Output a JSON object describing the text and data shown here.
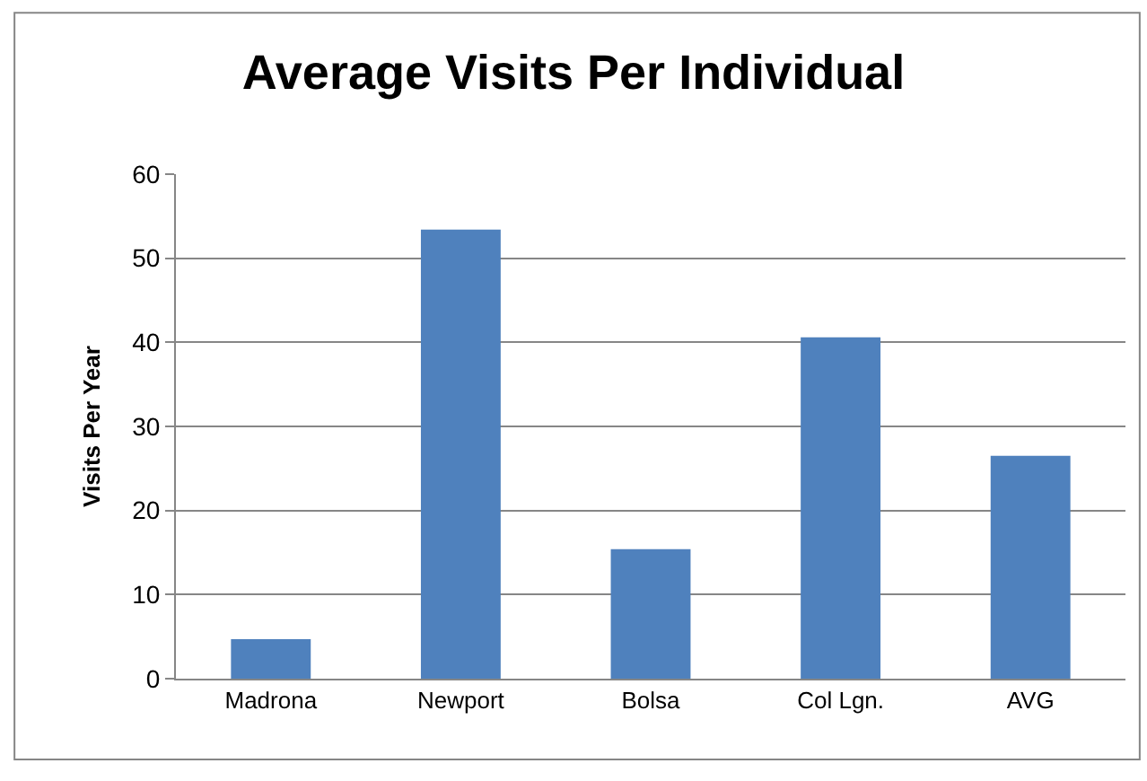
{
  "chart_data": {
    "type": "bar",
    "title": "Average Visits Per Individual",
    "ylabel": "Visits Per Year",
    "categories": [
      "Madrona",
      "Newport",
      "Bolsa",
      "Col Lgn.",
      "AVG"
    ],
    "values": [
      4.7,
      53.4,
      15.4,
      40.6,
      26.5
    ],
    "color": "#4f81bd",
    "ylim": [
      0,
      60
    ],
    "yticks": [
      0,
      10,
      20,
      30,
      40,
      50,
      60
    ],
    "grid": "y"
  }
}
